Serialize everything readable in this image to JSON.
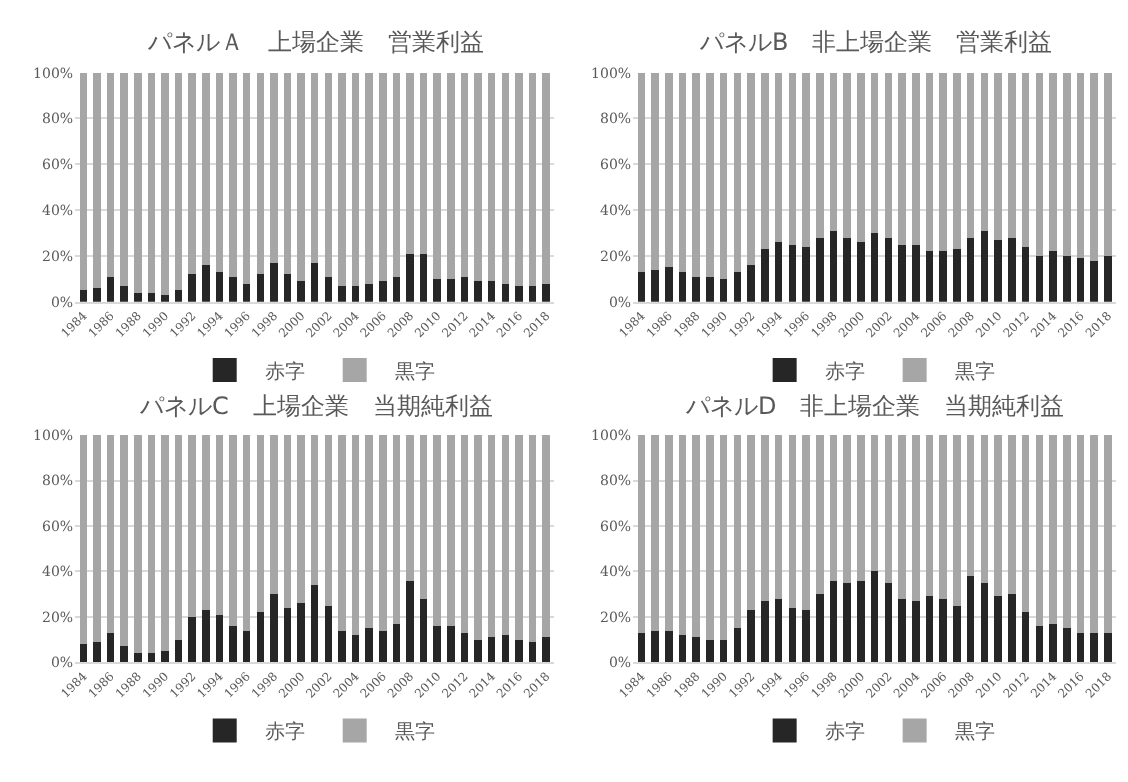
{
  "chart_data": [
    {
      "type": "bar",
      "title": "パネルＡ　上場企業　営業利益",
      "stacked": true,
      "grid": "y",
      "legend": "bottom",
      "categories": [
        "1984",
        null,
        "1986",
        null,
        "1988",
        null,
        "1990",
        null,
        "1992",
        null,
        "1994",
        null,
        "1996",
        null,
        "1998",
        null,
        "2000",
        null,
        "2002",
        null,
        "2004",
        null,
        "2006",
        null,
        "2008",
        null,
        "2010",
        null,
        "2012",
        null,
        "2014",
        null,
        "2016",
        null,
        "2018"
      ],
      "ylim": [
        0,
        100
      ],
      "yticks": [
        {
          "value": 0,
          "label": "0%"
        },
        {
          "value": 20,
          "label": "20%"
        },
        {
          "value": 40,
          "label": "40%"
        },
        {
          "value": 60,
          "label": "60%"
        },
        {
          "value": 80,
          "label": "80%"
        },
        {
          "value": 100,
          "label": "100%"
        }
      ],
      "series": [
        {
          "name": "赤字",
          "color": "#262626",
          "values": [
            5,
            6,
            11,
            7,
            4,
            4,
            3,
            5,
            12,
            16,
            13,
            11,
            8,
            12,
            17,
            12,
            9,
            17,
            11,
            7,
            7,
            8,
            9,
            11,
            21,
            21,
            10,
            10,
            11,
            9,
            9,
            8,
            7,
            7,
            8
          ]
        },
        {
          "name": "黒字",
          "color": "#a6a6a6",
          "values": [
            95,
            94,
            89,
            93,
            96,
            96,
            97,
            95,
            88,
            84,
            87,
            89,
            92,
            88,
            83,
            88,
            91,
            83,
            89,
            93,
            93,
            92,
            91,
            89,
            79,
            79,
            90,
            90,
            89,
            91,
            91,
            92,
            93,
            93,
            92
          ]
        }
      ]
    },
    {
      "type": "bar",
      "title": "パネルB　非上場企業　営業利益",
      "stacked": true,
      "grid": "y",
      "legend": "bottom",
      "categories": [
        "1984",
        null,
        "1986",
        null,
        "1988",
        null,
        "1990",
        null,
        "1992",
        null,
        "1994",
        null,
        "1996",
        null,
        "1998",
        null,
        "2000",
        null,
        "2002",
        null,
        "2004",
        null,
        "2006",
        null,
        "2008",
        null,
        "2010",
        null,
        "2012",
        null,
        "2014",
        null,
        "2016",
        null,
        "2018"
      ],
      "ylim": [
        0,
        100
      ],
      "yticks": [
        {
          "value": 0,
          "label": "0%"
        },
        {
          "value": 20,
          "label": "20%"
        },
        {
          "value": 40,
          "label": "40%"
        },
        {
          "value": 60,
          "label": "60%"
        },
        {
          "value": 80,
          "label": "80%"
        },
        {
          "value": 100,
          "label": "100%"
        }
      ],
      "series": [
        {
          "name": "赤字",
          "color": "#262626",
          "values": [
            13,
            14,
            15,
            13,
            11,
            11,
            10,
            13,
            16,
            23,
            26,
            25,
            24,
            28,
            31,
            28,
            26,
            30,
            28,
            25,
            25,
            22,
            22,
            23,
            28,
            31,
            27,
            28,
            24,
            20,
            22,
            20,
            19,
            18,
            20
          ]
        },
        {
          "name": "黒字",
          "color": "#a6a6a6",
          "values": [
            87,
            86,
            85,
            87,
            89,
            89,
            90,
            87,
            84,
            77,
            74,
            75,
            76,
            72,
            69,
            72,
            74,
            70,
            72,
            75,
            75,
            78,
            78,
            77,
            72,
            69,
            73,
            72,
            76,
            80,
            78,
            80,
            81,
            82,
            80
          ]
        }
      ]
    },
    {
      "type": "bar",
      "title": "パネルC　上場企業　当期純利益",
      "stacked": true,
      "grid": "y",
      "legend": "bottom",
      "categories": [
        "1984",
        null,
        "1986",
        null,
        "1988",
        null,
        "1990",
        null,
        "1992",
        null,
        "1994",
        null,
        "1996",
        null,
        "1998",
        null,
        "2000",
        null,
        "2002",
        null,
        "2004",
        null,
        "2006",
        null,
        "2008",
        null,
        "2010",
        null,
        "2012",
        null,
        "2014",
        null,
        "2016",
        null,
        "2018"
      ],
      "ylim": [
        0,
        100
      ],
      "yticks": [
        {
          "value": 0,
          "label": "0%"
        },
        {
          "value": 20,
          "label": "20%"
        },
        {
          "value": 40,
          "label": "40%"
        },
        {
          "value": 60,
          "label": "60%"
        },
        {
          "value": 80,
          "label": "80%"
        },
        {
          "value": 100,
          "label": "100%"
        }
      ],
      "series": [
        {
          "name": "赤字",
          "color": "#262626",
          "values": [
            8,
            9,
            13,
            7,
            4,
            4,
            5,
            10,
            20,
            23,
            21,
            16,
            14,
            22,
            30,
            24,
            26,
            34,
            25,
            14,
            12,
            15,
            14,
            17,
            36,
            28,
            16,
            16,
            13,
            10,
            11,
            12,
            10,
            9,
            11
          ]
        },
        {
          "name": "黒字",
          "color": "#a6a6a6",
          "values": [
            92,
            91,
            87,
            93,
            96,
            96,
            95,
            90,
            80,
            77,
            79,
            84,
            86,
            78,
            70,
            76,
            74,
            66,
            75,
            86,
            88,
            85,
            86,
            83,
            64,
            72,
            84,
            84,
            87,
            90,
            89,
            88,
            90,
            91,
            89
          ]
        }
      ]
    },
    {
      "type": "bar",
      "title": "パネルD　非上場企業　当期純利益",
      "stacked": true,
      "grid": "y",
      "legend": "bottom",
      "categories": [
        "1984",
        null,
        "1986",
        null,
        "1988",
        null,
        "1990",
        null,
        "1992",
        null,
        "1994",
        null,
        "1996",
        null,
        "1998",
        null,
        "2000",
        null,
        "2002",
        null,
        "2004",
        null,
        "2006",
        null,
        "2008",
        null,
        "2010",
        null,
        "2012",
        null,
        "2014",
        null,
        "2016",
        null,
        "2018"
      ],
      "ylim": [
        0,
        100
      ],
      "yticks": [
        {
          "value": 0,
          "label": "0%"
        },
        {
          "value": 20,
          "label": "20%"
        },
        {
          "value": 40,
          "label": "40%"
        },
        {
          "value": 60,
          "label": "60%"
        },
        {
          "value": 80,
          "label": "80%"
        },
        {
          "value": 100,
          "label": "100%"
        }
      ],
      "series": [
        {
          "name": "赤字",
          "color": "#262626",
          "values": [
            13,
            14,
            14,
            12,
            11,
            10,
            10,
            15,
            23,
            27,
            28,
            24,
            23,
            30,
            36,
            35,
            36,
            40,
            35,
            28,
            27,
            29,
            28,
            25,
            38,
            35,
            29,
            30,
            22,
            16,
            17,
            15,
            13,
            13,
            13
          ]
        },
        {
          "name": "黒字",
          "color": "#a6a6a6",
          "values": [
            87,
            86,
            86,
            88,
            89,
            90,
            90,
            85,
            77,
            73,
            72,
            76,
            77,
            70,
            64,
            65,
            64,
            60,
            65,
            72,
            73,
            71,
            72,
            75,
            62,
            65,
            71,
            70,
            78,
            84,
            83,
            85,
            87,
            87,
            87
          ]
        }
      ]
    }
  ]
}
